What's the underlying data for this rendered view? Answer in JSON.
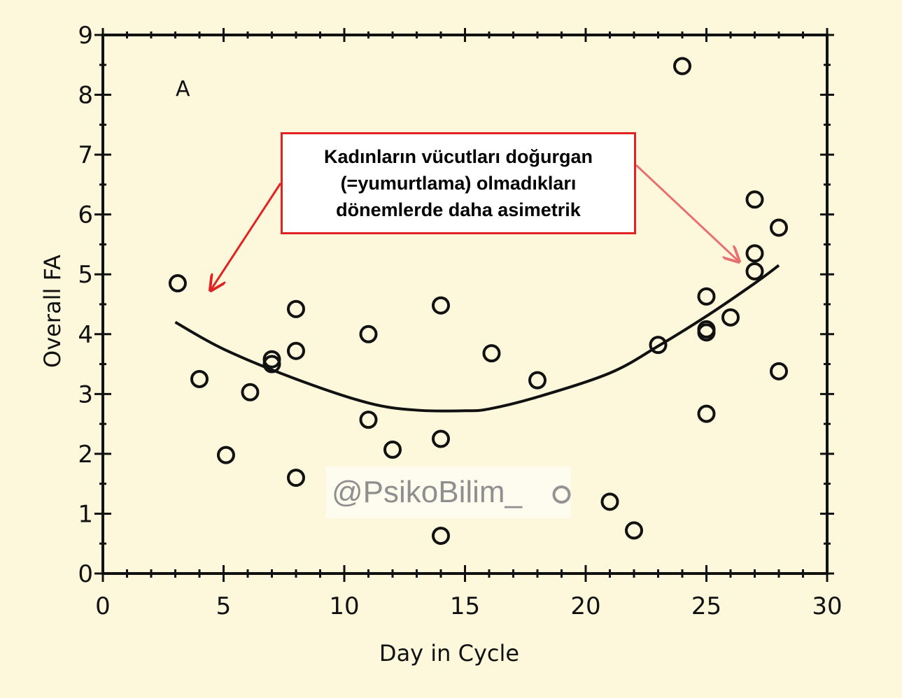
{
  "chart_data": {
    "type": "scatter",
    "title": "",
    "panel_label": "A",
    "xlabel": "Day in Cycle",
    "ylabel": "Overall FA",
    "xlim": [
      0,
      30
    ],
    "ylim": [
      0,
      9
    ],
    "xticks": [
      0,
      5,
      10,
      15,
      20,
      25,
      30
    ],
    "yticks": [
      0,
      1,
      2,
      3,
      4,
      5,
      6,
      7,
      8,
      9
    ],
    "grid": false,
    "points": [
      {
        "x": 3.1,
        "y": 4.85
      },
      {
        "x": 4.0,
        "y": 3.25
      },
      {
        "x": 5.1,
        "y": 1.98
      },
      {
        "x": 6.1,
        "y": 3.03
      },
      {
        "x": 7.0,
        "y": 3.58
      },
      {
        "x": 7.0,
        "y": 3.5
      },
      {
        "x": 8.0,
        "y": 4.42
      },
      {
        "x": 8.0,
        "y": 3.72
      },
      {
        "x": 8.0,
        "y": 1.6
      },
      {
        "x": 11.0,
        "y": 4.0
      },
      {
        "x": 11.0,
        "y": 2.57
      },
      {
        "x": 12.0,
        "y": 2.07
      },
      {
        "x": 14.0,
        "y": 4.48
      },
      {
        "x": 14.0,
        "y": 2.25
      },
      {
        "x": 14.0,
        "y": 0.63
      },
      {
        "x": 16.1,
        "y": 3.68
      },
      {
        "x": 18.0,
        "y": 3.23
      },
      {
        "x": 19.0,
        "y": 1.32
      },
      {
        "x": 21.0,
        "y": 1.2
      },
      {
        "x": 22.0,
        "y": 0.72
      },
      {
        "x": 23.0,
        "y": 3.82
      },
      {
        "x": 24.0,
        "y": 8.48
      },
      {
        "x": 25.0,
        "y": 4.63
      },
      {
        "x": 25.0,
        "y": 4.08
      },
      {
        "x": 25.0,
        "y": 4.03
      },
      {
        "x": 25.0,
        "y": 2.67
      },
      {
        "x": 26.0,
        "y": 4.28
      },
      {
        "x": 27.0,
        "y": 6.25
      },
      {
        "x": 27.0,
        "y": 5.35
      },
      {
        "x": 27.0,
        "y": 5.05
      },
      {
        "x": 28.0,
        "y": 5.78
      },
      {
        "x": 28.0,
        "y": 3.38
      }
    ],
    "fit_curve": {
      "type": "quadratic",
      "x": [
        3,
        5,
        8,
        11,
        13,
        15,
        16,
        18,
        21,
        23,
        25,
        27,
        28
      ],
      "y": [
        4.2,
        3.75,
        3.25,
        2.85,
        2.73,
        2.72,
        2.75,
        2.95,
        3.35,
        3.8,
        4.3,
        4.85,
        5.15
      ]
    },
    "annotations": [
      "Kadınların vücutları doğurgan",
      "(=yumurtlama) olmadıkları",
      "dönemlerde daha asimetrik"
    ]
  },
  "callout": {
    "line1": "Kadınların vücutları doğurgan",
    "line2": "(=yumurtlama) olmadıkları",
    "line3": "dönemlerde daha asimetrik",
    "border_color": "#e02222",
    "arrow_left_color": "#e02222",
    "arrow_right_color": "#e87070"
  },
  "watermark": {
    "text": "@PsikoBilim_"
  },
  "colors": {
    "background": "#fdf8dc",
    "ink": "#111111"
  }
}
